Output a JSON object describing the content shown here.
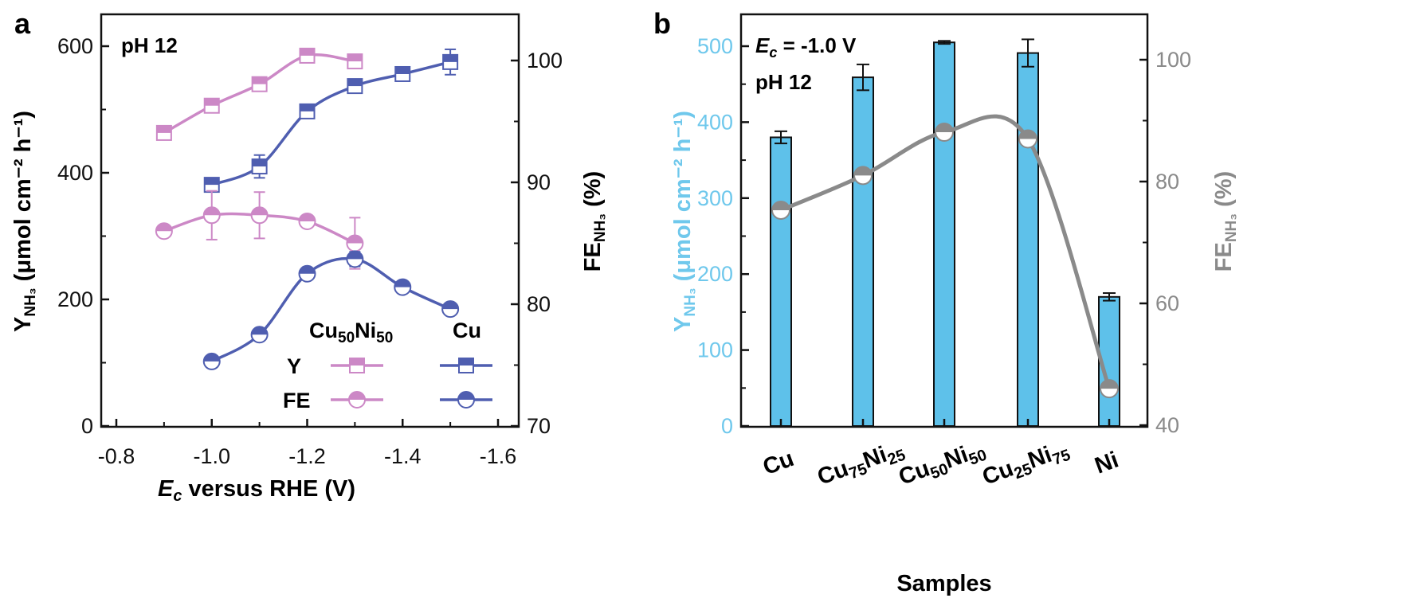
{
  "panel_a": {
    "label": "a",
    "annotation": "pH 12",
    "xlabel_italic": "E",
    "xlabel_sub": "c",
    "xlabel_rest": " versus RHE (V)",
    "ylabel_left_main": "Y",
    "ylabel_left_sub": "NH₃",
    "ylabel_left_rest": " (μmol cm⁻² h⁻¹)",
    "ylabel_right_main": "FE",
    "ylabel_right_sub": "NH₃",
    "ylabel_right_rest": " (%)",
    "x_ticks": [
      "-0.8",
      "-1.0",
      "-1.2",
      "-1.4",
      "-1.6"
    ],
    "yl_ticks": [
      "0",
      "200",
      "400",
      "600"
    ],
    "yr_ticks": [
      "70",
      "80",
      "90",
      "100"
    ],
    "legend": {
      "header_cuni_main": "Cu",
      "header_cuni_sub1": "50",
      "header_cuni_mid": "Ni",
      "header_cuni_sub2": "50",
      "header_cu": "Cu",
      "row_y": "Y",
      "row_fe": "FE"
    }
  },
  "panel_b": {
    "label": "b",
    "annotation_italic": "E",
    "annotation_sub": "c",
    "annotation_rest": " = -1.0 V",
    "annotation2": "pH 12",
    "xlabel": "Samples",
    "ylabel_left_main": "Y",
    "ylabel_left_sub": "NH₃",
    "ylabel_left_rest": " (μmol cm⁻² h⁻¹)",
    "ylabel_right_main": "FE",
    "ylabel_right_sub": "NH₃",
    "ylabel_right_rest": " (%)",
    "yl_ticks": [
      "0",
      "100",
      "200",
      "300",
      "400",
      "500"
    ],
    "yr_ticks": [
      "40",
      "60",
      "80",
      "100"
    ],
    "categories": [
      {
        "main": "Cu",
        "sub1": "",
        "mid": "",
        "sub2": ""
      },
      {
        "main": "Cu",
        "sub1": "75",
        "mid": "Ni",
        "sub2": "25"
      },
      {
        "main": "Cu",
        "sub1": "50",
        "mid": "Ni",
        "sub2": "50"
      },
      {
        "main": "Cu",
        "sub1": "25",
        "mid": "Ni",
        "sub2": "75"
      },
      {
        "main": "Ni",
        "sub1": "",
        "mid": "",
        "sub2": ""
      }
    ]
  },
  "colors": {
    "pink": "#cc88c6",
    "blue": "#4f5eb0",
    "bar": "#5ec1ea",
    "gray": "#8a8a8a",
    "cyan_text": "#6fc8ec"
  },
  "chart_data": [
    {
      "type": "line",
      "panel": "a",
      "x_axis": {
        "label": "Ec versus RHE (V)",
        "range": [
          -0.8,
          -1.6
        ],
        "reversed": true
      },
      "y_left": {
        "label": "YNH3 (μmol cm-2 h-1)",
        "range": [
          0,
          650
        ]
      },
      "y_right": {
        "label": "FENH3 (%)",
        "range": [
          70,
          103
        ]
      },
      "series": [
        {
          "name": "Y Cu50Ni50",
          "axis": "left",
          "marker": "square",
          "color": "pink",
          "x": [
            -0.9,
            -1.0,
            -1.1,
            -1.2,
            -1.3
          ],
          "y": [
            463,
            506,
            540,
            585,
            576
          ],
          "err": [
            8,
            6,
            6,
            8,
            8
          ]
        },
        {
          "name": "Y Cu",
          "axis": "left",
          "marker": "square",
          "color": "blue",
          "x": [
            -1.0,
            -1.1,
            -1.2,
            -1.3,
            -1.4,
            -1.5
          ],
          "y": [
            381,
            410,
            497,
            537,
            556,
            575
          ],
          "err": [
            10,
            18,
            10,
            10,
            8,
            20
          ]
        },
        {
          "name": "FE Cu50Ni50",
          "axis": "right",
          "marker": "circle",
          "color": "pink",
          "x": [
            -0.9,
            -1.0,
            -1.1,
            -1.2,
            -1.3
          ],
          "y": [
            86.0,
            87.3,
            87.3,
            86.8,
            85.0
          ],
          "err": [
            0.3,
            2.0,
            1.9,
            0.5,
            2.1
          ]
        },
        {
          "name": "FE Cu",
          "axis": "right",
          "marker": "circle",
          "color": "blue",
          "x": [
            -1.0,
            -1.1,
            -1.2,
            -1.3,
            -1.4,
            -1.5
          ],
          "y": [
            75.3,
            77.5,
            82.5,
            83.7,
            81.4,
            79.6
          ],
          "err": [
            0.4,
            0.3,
            0.4,
            0.6,
            0.3,
            0.3
          ]
        }
      ]
    },
    {
      "type": "bar",
      "panel": "b",
      "categories": [
        "Cu",
        "Cu75Ni25",
        "Cu50Ni50",
        "Cu25Ni75",
        "Ni"
      ],
      "y_left": {
        "label": "YNH3 (μmol cm-2 h-1)",
        "range": [
          0,
          530
        ]
      },
      "y_right": {
        "label": "FENH3 (%)",
        "range": [
          40,
          108
        ]
      },
      "xlabel": "Samples",
      "series": [
        {
          "name": "YNH3",
          "axis": "left",
          "values": [
            380,
            459,
            505,
            491,
            170
          ],
          "err": [
            8,
            17,
            2,
            18,
            5
          ]
        },
        {
          "name": "FENH3",
          "axis": "right",
          "type": "line",
          "values": [
            75.3,
            81.0,
            88.1,
            87.0,
            46.0
          ],
          "err": [
            0.5,
            0.4,
            1.1,
            0.4,
            0.3
          ]
        }
      ]
    }
  ]
}
